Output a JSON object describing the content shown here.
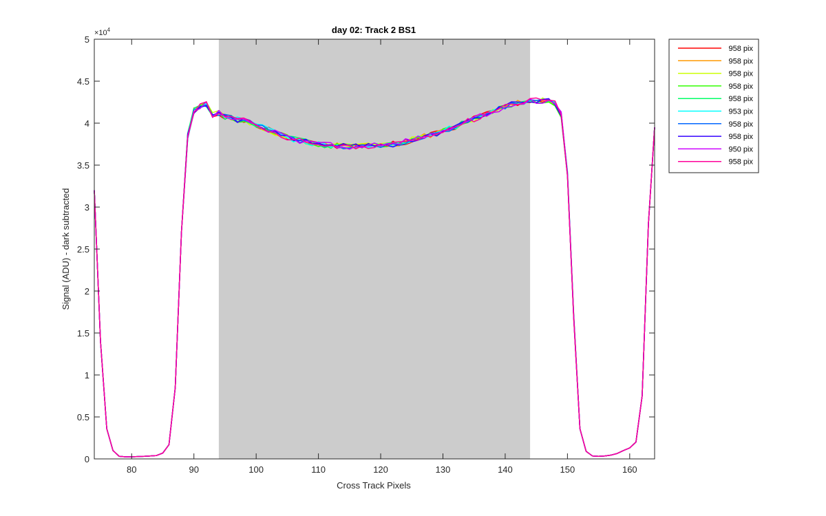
{
  "chart_data": {
    "type": "line",
    "title": "day 02: Track 2  BS1",
    "xlabel": "Cross Track Pixels",
    "ylabel": "Signal (ADU) - dark subtracted",
    "y_exponent": "×10",
    "y_exponent_power": "4",
    "xlim": [
      74,
      164
    ],
    "ylim": [
      0,
      50000
    ],
    "xticks": [
      80,
      90,
      100,
      110,
      120,
      130,
      140,
      150,
      160
    ],
    "yticks": [
      0,
      5000,
      10000,
      15000,
      20000,
      25000,
      30000,
      35000,
      40000,
      45000,
      50000
    ],
    "ytick_labels": [
      "0",
      "0.5",
      "1",
      "1.5",
      "2",
      "2.5",
      "3",
      "3.5",
      "4",
      "4.5",
      "5"
    ],
    "shaded_region": {
      "x_start": 94,
      "x_end": 144,
      "color": "#cccccc"
    },
    "legend_position": "outside-top-right",
    "x": [
      74,
      75,
      76,
      77,
      78,
      79,
      80,
      81,
      82,
      83,
      84,
      85,
      86,
      87,
      88,
      89,
      90,
      91,
      92,
      93,
      94,
      95,
      96,
      97,
      98,
      99,
      100,
      101,
      102,
      103,
      104,
      105,
      106,
      107,
      108,
      109,
      110,
      111,
      112,
      113,
      114,
      115,
      116,
      117,
      118,
      119,
      120,
      121,
      122,
      123,
      124,
      125,
      126,
      127,
      128,
      129,
      130,
      131,
      132,
      133,
      134,
      135,
      136,
      137,
      138,
      139,
      140,
      141,
      142,
      143,
      144,
      145,
      146,
      147,
      148,
      149,
      150,
      151,
      152,
      153,
      154,
      155,
      156,
      157,
      158,
      159,
      160,
      161,
      162,
      163,
      164
    ],
    "base_values": [
      32000,
      14000,
      3600,
      1000,
      300,
      250,
      250,
      280,
      300,
      350,
      400,
      700,
      1700,
      8500,
      27000,
      38500,
      41500,
      42000,
      42300,
      41000,
      41200,
      40800,
      40600,
      40400,
      40300,
      40100,
      39800,
      39500,
      39200,
      38900,
      38600,
      38300,
      38100,
      37900,
      37800,
      37650,
      37500,
      37400,
      37350,
      37300,
      37250,
      37200,
      37200,
      37250,
      37300,
      37350,
      37400,
      37450,
      37500,
      37600,
      37800,
      38000,
      38200,
      38400,
      38600,
      38800,
      39000,
      39300,
      39600,
      39900,
      40200,
      40500,
      40800,
      41100,
      41400,
      41700,
      42000,
      42200,
      42400,
      42500,
      42600,
      42700,
      42700,
      42600,
      42300,
      41000,
      34000,
      17000,
      3600,
      900,
      350,
      300,
      350,
      450,
      650,
      1000,
      1300,
      2000,
      7500,
      28000,
      39500
    ],
    "noise_start": 89,
    "noise_end": 151,
    "noise_amplitude": 350,
    "series": [
      {
        "name": "958 pix",
        "color": "#ff0000"
      },
      {
        "name": "958 pix",
        "color": "#ff9900"
      },
      {
        "name": "958 pix",
        "color": "#ccff00"
      },
      {
        "name": "958 pix",
        "color": "#33ff00"
      },
      {
        "name": "958 pix",
        "color": "#00ff66"
      },
      {
        "name": "953 pix",
        "color": "#00ffff"
      },
      {
        "name": "958 pix",
        "color": "#0066ff"
      },
      {
        "name": "958 pix",
        "color": "#3300ff"
      },
      {
        "name": "950 pix",
        "color": "#cc00ff"
      },
      {
        "name": "958 pix",
        "color": "#ff0099"
      }
    ]
  }
}
